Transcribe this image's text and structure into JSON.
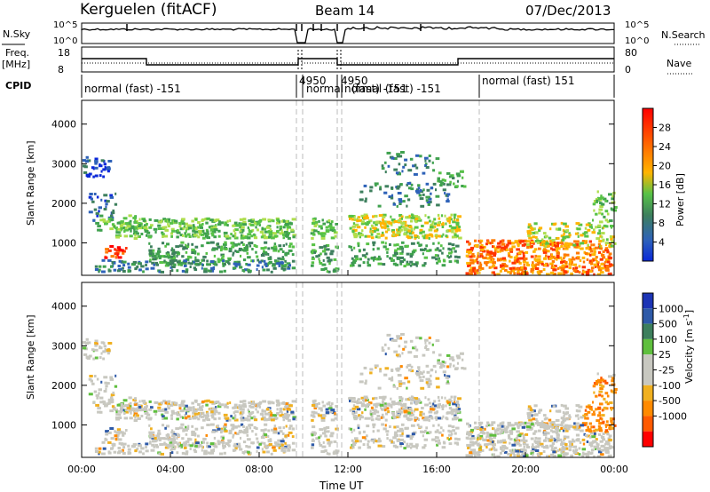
{
  "header": {
    "station": "Kerguelen (fitACF)",
    "beam": "Beam 14",
    "date": "07/Dec/2013"
  },
  "left_labels": {
    "nsky": "N.Sky",
    "freq": "Freq.",
    "freq_unit": "[MHz]",
    "cpid": "CPID"
  },
  "right_labels": {
    "nsearch": "N.Search",
    "nave": "Nave"
  },
  "noise_ticks": {
    "top": "10^5",
    "bottom": "10^0"
  },
  "freq_ticks": {
    "left": [
      "18",
      "8"
    ],
    "right": [
      "80",
      "0"
    ]
  },
  "cpid_segments": [
    {
      "label": "normal (fast) -151"
    },
    {
      "label": "4950"
    },
    {
      "label": "normal"
    },
    {
      "label": "4950"
    },
    {
      "label": "normal (fast) -151"
    },
    {
      "label": "normal (fast) 151"
    }
  ],
  "cpid_overlap": "(fast) -151",
  "chart_data": [
    {
      "type": "heatmap",
      "panel": "power",
      "ylabel": "Slant Range [km]",
      "yticks": [
        "1000",
        "2000",
        "3000",
        "4000"
      ],
      "ylim": [
        180,
        4600
      ],
      "colorbar_label": "Power [dB]",
      "colorbar_ticks": [
        "4",
        "8",
        "12",
        "16",
        "20",
        "24",
        "28"
      ],
      "colorbar_colors": [
        "#0a28d8",
        "#2e62b8",
        "#3d7f5d",
        "#3fa14e",
        "#57c247",
        "#aede4d",
        "#ffb400",
        "#ff7a00",
        "#ff3300",
        "#ff0000"
      ]
    },
    {
      "type": "heatmap",
      "panel": "velocity",
      "ylabel": "Slant Range [km]",
      "yticks": [
        "1000",
        "2000",
        "3000",
        "4000"
      ],
      "ylim": [
        180,
        4600
      ],
      "colorbar_label": "Velocity [m s-1]",
      "colorbar_ticks": [
        "1000",
        "500",
        "100",
        "25",
        "-25",
        "-100",
        "-500",
        "-1000"
      ],
      "colorbar_colors": [
        "#1c34b5",
        "#2e5aa8",
        "#3d7f5d",
        "#5fbf3e",
        "#c8c8c0",
        "#c8c8c0",
        "#f0b020",
        "#ff8a00",
        "#ff5a00",
        "#ff0000"
      ]
    }
  ],
  "x_axis": {
    "label": "Time UT",
    "ticks": [
      "00:00",
      "04:00",
      "08:00",
      "12:00",
      "16:00",
      "20:00",
      "00:00"
    ]
  }
}
